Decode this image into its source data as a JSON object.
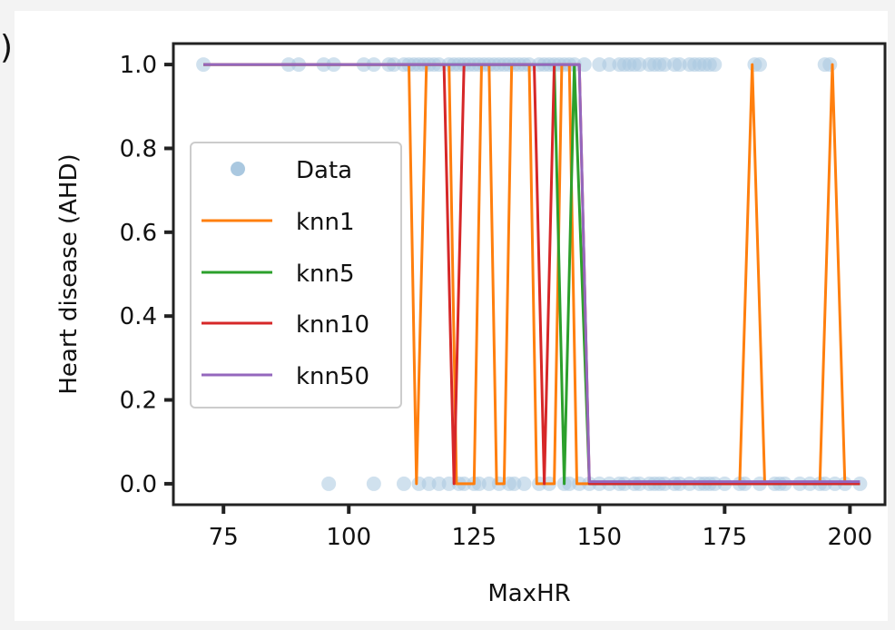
{
  "chart_data": {
    "type": "line",
    "xlabel": "MaxHR",
    "ylabel": "Heart disease (AHD)",
    "xlim": [
      65,
      207
    ],
    "ylim": [
      -0.05,
      1.05
    ],
    "xticks": [
      75,
      100,
      125,
      150,
      175,
      200
    ],
    "yticks": [
      0.0,
      0.2,
      0.4,
      0.6,
      0.8,
      1.0
    ],
    "xtick_labels": [
      "75",
      "100",
      "125",
      "150",
      "175",
      "200"
    ],
    "ytick_labels": [
      "0.0",
      "0.2",
      "0.4",
      "0.6",
      "0.8",
      "1.0"
    ],
    "legend_position": "center-left",
    "grid": false,
    "scatter": {
      "name": "Data",
      "color": "#aac8e0",
      "x1": [
        71,
        88,
        90,
        95,
        97,
        103,
        105,
        108,
        109,
        111,
        112,
        113,
        114,
        115,
        116,
        117,
        118,
        120,
        121,
        122,
        123,
        124,
        125,
        126,
        127,
        128,
        129,
        130,
        131,
        132,
        133,
        134,
        135,
        136,
        138,
        139,
        140,
        141,
        142,
        143,
        144,
        145,
        147,
        150,
        152,
        154,
        155,
        156,
        157,
        158,
        160,
        161,
        162,
        163,
        165,
        166,
        168,
        169,
        170,
        171,
        172,
        173,
        181,
        182,
        195,
        196
      ],
      "x0": [
        96,
        105,
        111,
        114,
        116,
        118,
        120,
        122,
        123,
        125,
        126,
        128,
        130,
        132,
        133,
        135,
        138,
        140,
        143,
        144,
        146,
        148,
        150,
        152,
        154,
        155,
        157,
        158,
        160,
        161,
        162,
        163,
        165,
        166,
        168,
        170,
        171,
        172,
        173,
        175,
        178,
        179,
        182,
        185,
        186,
        187,
        190,
        192,
        194,
        195,
        197,
        199,
        202
      ]
    },
    "series": [
      {
        "name": "knn1",
        "color": "#ff7f0e",
        "x": [
          71,
          112,
          113.5,
          115.5,
          120,
          121.5,
          125,
          126.5,
          128,
          129.5,
          131,
          132.5,
          136,
          137.5,
          141,
          142.5,
          144,
          145.5,
          178,
          180.5,
          183,
          194,
          196.5,
          199,
          202
        ],
        "y": [
          1,
          1,
          0,
          1,
          1,
          0,
          0,
          1,
          1,
          0,
          0,
          1,
          1,
          0,
          0,
          1,
          1,
          0,
          0,
          1,
          0,
          0,
          1,
          0,
          0
        ]
      },
      {
        "name": "knn5",
        "color": "#2ca02c",
        "x": [
          71,
          141,
          143,
          145,
          148,
          202
        ],
        "y": [
          1,
          1,
          0,
          1,
          0,
          0
        ]
      },
      {
        "name": "knn10",
        "color": "#d62728",
        "x": [
          71,
          119,
          121,
          123,
          137,
          139,
          141,
          146,
          148,
          202
        ],
        "y": [
          1,
          1,
          0,
          1,
          1,
          0,
          1,
          1,
          0,
          0
        ]
      },
      {
        "name": "knn50",
        "color": "#9467bd",
        "x": [
          71,
          146,
          148,
          202
        ],
        "y": [
          1,
          1,
          0.005,
          0.005
        ]
      }
    ]
  }
}
